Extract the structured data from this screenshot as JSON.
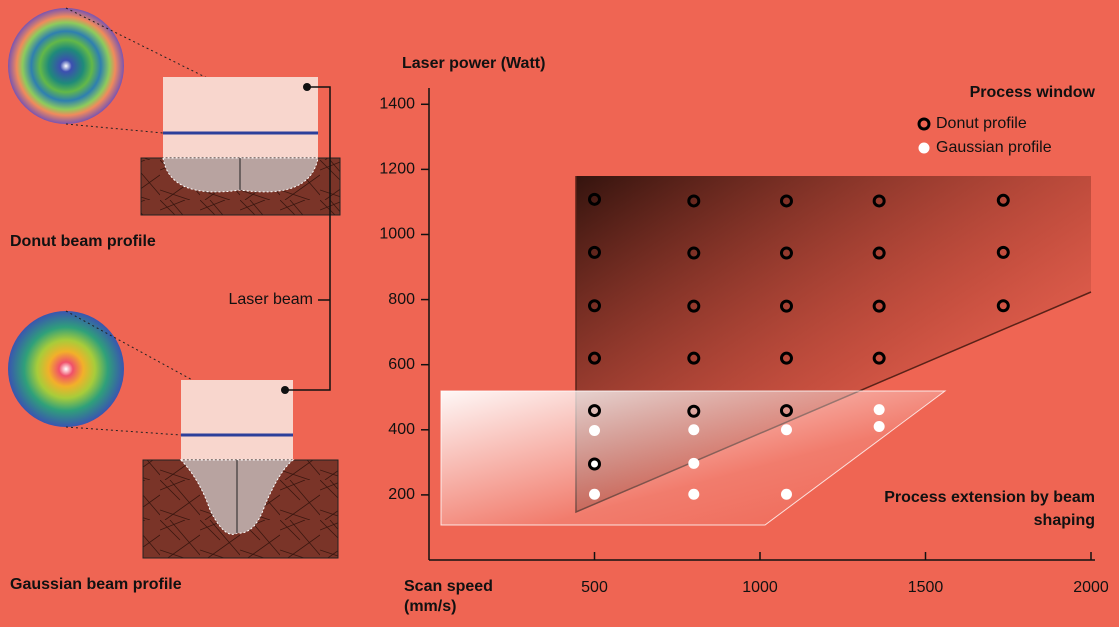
{
  "chart_data": {
    "type": "scatter",
    "y_label": "Laser power (Watt)",
    "x_label": "Scan speed (mm/s)",
    "legend_title": "Process window",
    "annotation": "Process extension by beam shaping",
    "xlim": [
      0,
      2000
    ],
    "xticks": [
      500,
      1000,
      1500,
      2000
    ],
    "ylim": [
      0,
      1450
    ],
    "yticks": [
      200,
      400,
      600,
      800,
      1000,
      1200,
      1400
    ],
    "series": [
      {
        "name": "Donut profile",
        "color": "#000000",
        "marker": "hollow",
        "x": [
          500,
          800,
          1080,
          1360,
          1735,
          500,
          800,
          1080,
          1360,
          1735,
          500,
          800,
          1080,
          1360,
          1735,
          500,
          800,
          1080,
          1360,
          500,
          800,
          1080,
          500
        ],
        "values": [
          1108,
          1103,
          1103,
          1103,
          1105,
          945,
          943,
          943,
          943,
          945,
          781,
          780,
          780,
          780,
          781,
          620,
          620,
          620,
          620,
          459,
          457,
          459,
          295
        ]
      },
      {
        "name": "Gaussian profile",
        "color": "#ffffff",
        "marker": "filled",
        "x": [
          500,
          800,
          1080,
          1360,
          1360,
          500,
          800,
          500,
          800,
          1080
        ],
        "values": [
          398,
          400,
          400,
          462,
          410,
          297,
          297,
          202,
          202,
          202
        ]
      }
    ]
  },
  "illustration": {
    "donut_label": "Donut beam profile",
    "gaussian_label": "Gaussian beam profile",
    "beam_label": "Laser beam"
  }
}
